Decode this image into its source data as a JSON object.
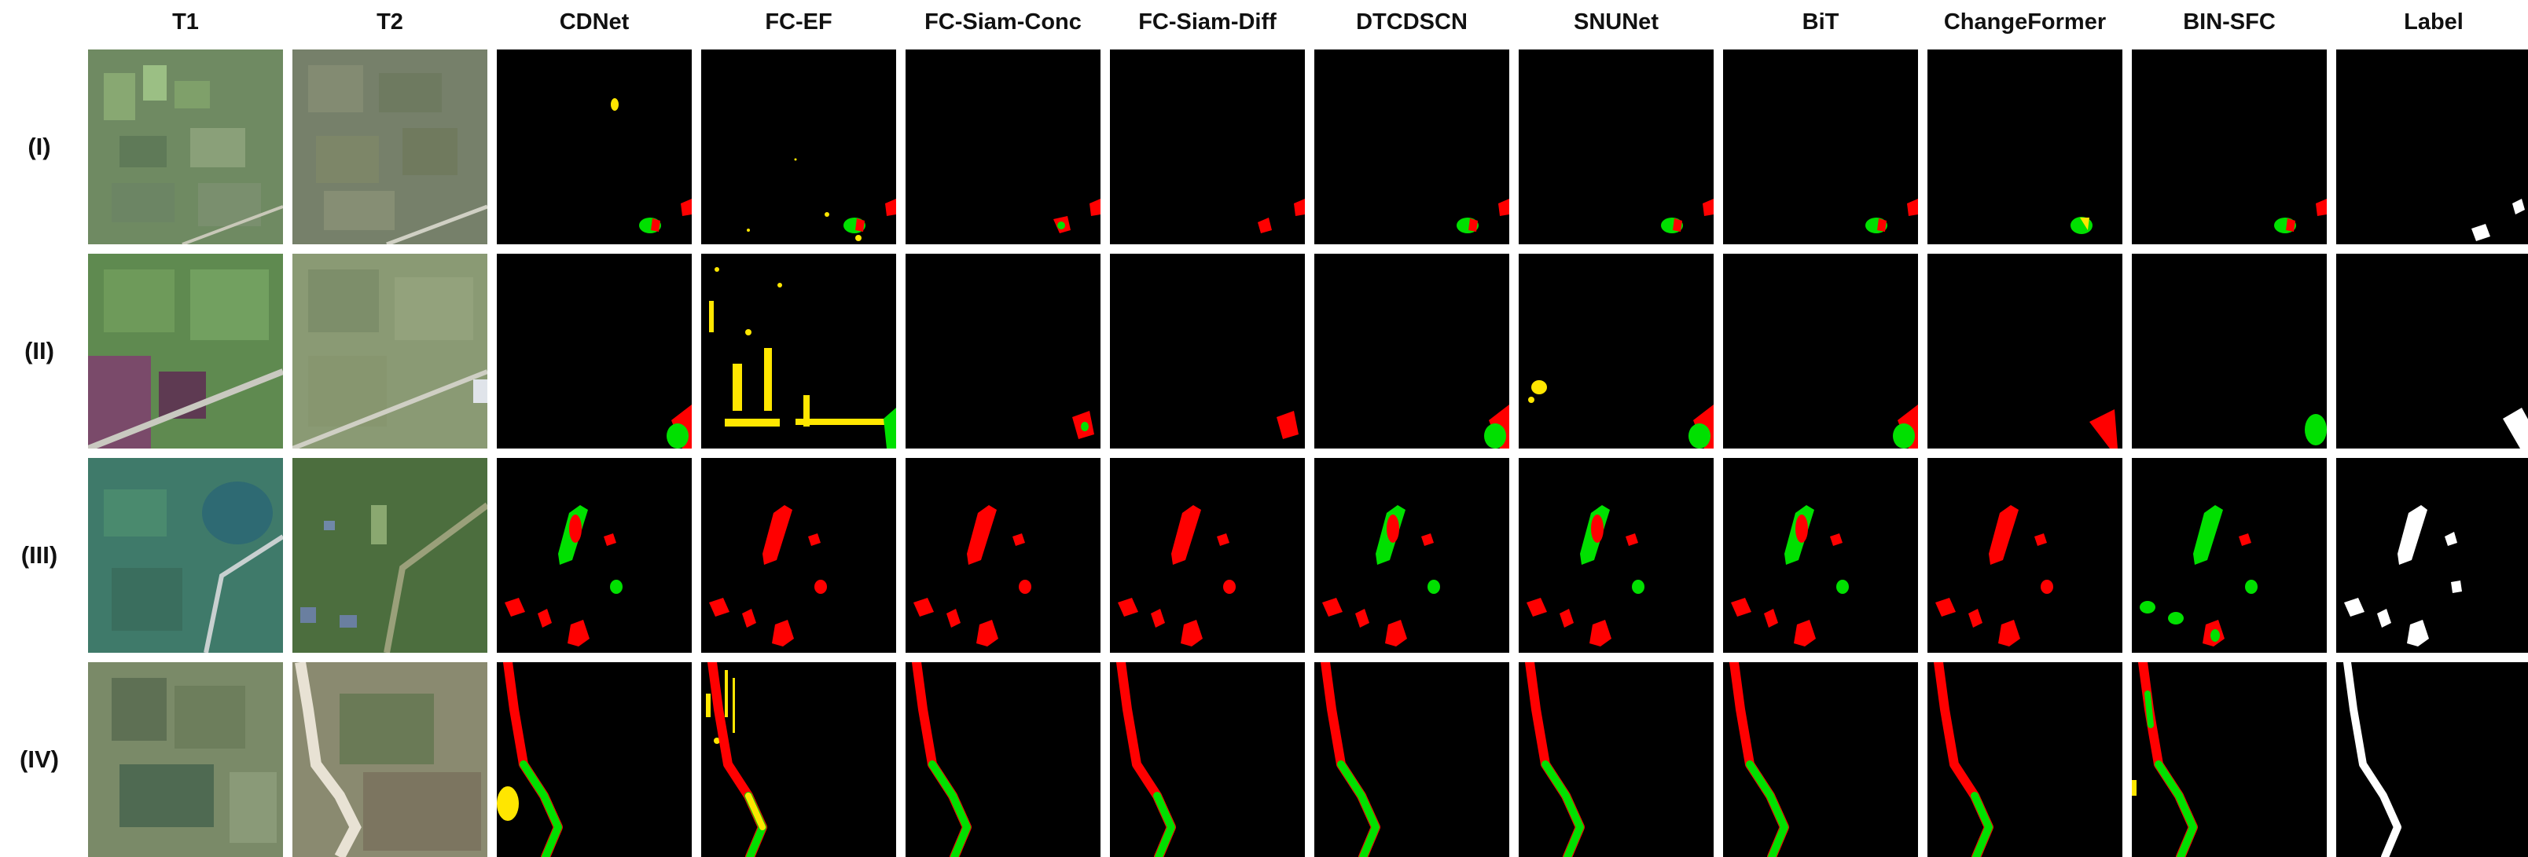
{
  "columns": [
    "T1",
    "T2",
    "CDNet",
    "FC-EF",
    "FC-Siam-Conc",
    "FC-Siam-Diff",
    "DTCDSCN",
    "SNUNet",
    "BiT",
    "ChangeFormer",
    "BIN-SFC",
    "Label"
  ],
  "rows": [
    "(I)",
    "(II)",
    "(III)",
    "(IV)"
  ],
  "colors": {
    "background": "#ffffff",
    "map_background": "#000000",
    "false_positive": "#ffe600",
    "false_negative": "#ff0000",
    "true_positive": "#00e000",
    "label_change": "#ffffff"
  }
}
